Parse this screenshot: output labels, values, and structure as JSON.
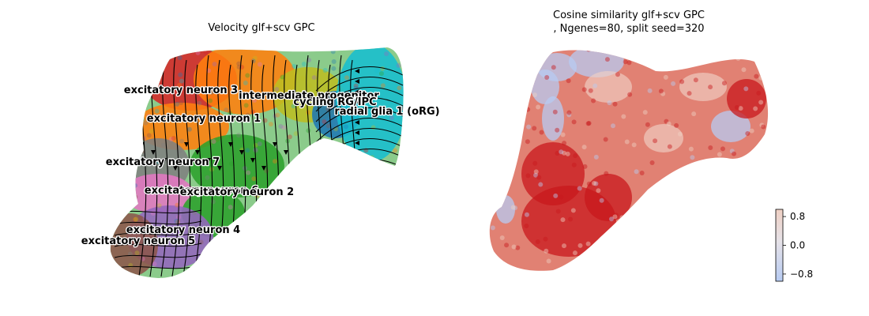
{
  "chart_data": [
    {
      "type": "scatter",
      "title": "Velocity glf+scv GPC",
      "overlay": "velocity streamlines (black arrows)",
      "axes_visible": false,
      "clusters": [
        {
          "name": "excitatory neuron 3",
          "color": "#d62728"
        },
        {
          "name": "excitatory neuron 1",
          "color": "#ff7f0e"
        },
        {
          "name": "intermediate progenitor",
          "color": "#bcbd22"
        },
        {
          "name": "cycling RG/IPC",
          "color": "#1f77b4"
        },
        {
          "name": "radial glia 1 (oRG)",
          "color": "#17becf"
        },
        {
          "name": "excitatory neuron 7",
          "color": "#7f7f7f"
        },
        {
          "name": "excitatory neuron 6",
          "color": "#e377c2"
        },
        {
          "name": "excitatory neuron 2",
          "color": "#2ca02c"
        },
        {
          "name": "excitatory neuron 4",
          "color": "#9467bd"
        },
        {
          "name": "excitatory neuron 5",
          "color": "#8c564b"
        }
      ]
    },
    {
      "type": "scatter",
      "title_lines": [
        "Cosine similarity glf+scv GPC",
        ", Ngenes=80, split seed=320"
      ],
      "axes_visible": false,
      "colormap": "coolwarm",
      "colorbar": {
        "ticks": [
          0.8,
          0.0,
          -0.8
        ],
        "tick_labels": [
          "0.8",
          "0.0",
          "−0.8"
        ],
        "range": [
          -1,
          1
        ]
      },
      "colors": {
        "low": "#b7cbf2",
        "mid": "#efd0c4",
        "high": "#c8181c"
      }
    }
  ]
}
